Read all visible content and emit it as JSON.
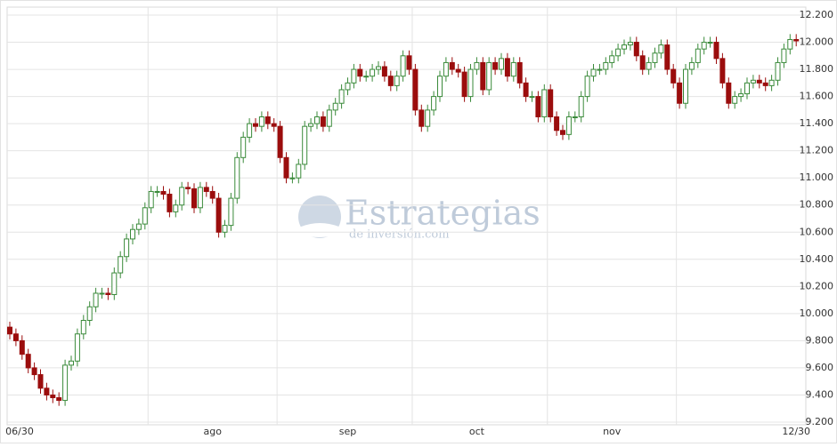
{
  "chart_data": {
    "type": "candlestick",
    "watermark": "Estrategias",
    "watermark_subtitle": "de inversión.com",
    "up_color": "#3a8a3a",
    "down_color": "#9b0d0d",
    "grid": true,
    "ylim": [
      9.2,
      12.2
    ],
    "yticks": [
      {
        "value": 9.2,
        "label": "9.200"
      },
      {
        "value": 9.4,
        "label": "9.400"
      },
      {
        "value": 9.6,
        "label": "9.600"
      },
      {
        "value": 9.8,
        "label": "9.800"
      },
      {
        "value": 10.0,
        "label": "10.000"
      },
      {
        "value": 10.2,
        "label": "10.200"
      },
      {
        "value": 10.4,
        "label": "10.400"
      },
      {
        "value": 10.6,
        "label": "10.600"
      },
      {
        "value": 10.8,
        "label": "10.800"
      },
      {
        "value": 11.0,
        "label": "11.000"
      },
      {
        "value": 11.2,
        "label": "11.200"
      },
      {
        "value": 11.4,
        "label": "11.400"
      },
      {
        "value": 11.6,
        "label": "11.600"
      },
      {
        "value": 11.8,
        "label": "11.800"
      },
      {
        "value": 12.0,
        "label": "12.000"
      },
      {
        "value": 12.2,
        "label": "12.200"
      }
    ],
    "categories": [
      "06/30",
      null,
      null,
      null,
      null,
      null,
      null,
      null,
      null,
      null,
      null,
      null,
      null,
      null,
      null,
      null,
      null,
      null,
      null,
      null,
      null,
      null,
      null,
      null,
      null,
      null,
      null,
      null,
      null,
      null,
      null,
      null,
      null,
      "ago",
      null,
      null,
      null,
      null,
      null,
      null,
      null,
      null,
      null,
      null,
      null,
      null,
      null,
      null,
      null,
      null,
      null,
      null,
      null,
      null,
      null,
      "sep",
      null,
      null,
      null,
      null,
      null,
      null,
      null,
      null,
      null,
      null,
      null,
      null,
      null,
      null,
      null,
      null,
      null,
      null,
      null,
      null,
      "oct",
      null,
      null,
      null,
      null,
      null,
      null,
      null,
      null,
      null,
      null,
      null,
      null,
      null,
      null,
      null,
      null,
      null,
      null,
      null,
      null,
      null,
      "nov",
      null,
      null,
      null,
      null,
      null,
      null,
      null,
      null,
      null,
      null,
      null,
      null,
      null,
      null,
      null,
      null,
      null,
      null,
      null,
      null,
      null,
      null,
      null,
      null,
      null,
      null,
      null,
      null,
      null,
      "12/30"
    ],
    "open": [
      9.9,
      9.85,
      9.8,
      9.7,
      9.6,
      9.55,
      9.45,
      9.4,
      9.38,
      9.36,
      9.62,
      9.65,
      9.85,
      9.95,
      10.05,
      10.15,
      10.15,
      10.14,
      10.3,
      10.42,
      10.55,
      10.62,
      10.66,
      10.78,
      10.9,
      10.9,
      10.88,
      10.75,
      10.8,
      10.93,
      10.92,
      10.78,
      10.93,
      10.9,
      10.85,
      10.6,
      10.65,
      10.85,
      11.15,
      11.3,
      11.4,
      11.38,
      11.45,
      11.4,
      11.38,
      11.15,
      11.0,
      11.0,
      11.1,
      11.38,
      11.4,
      11.45,
      11.38,
      11.5,
      11.55,
      11.65,
      11.7,
      11.8,
      11.75,
      11.75,
      11.8,
      11.82,
      11.75,
      11.68,
      11.75,
      11.9,
      11.8,
      11.5,
      11.38,
      11.5,
      11.6,
      11.75,
      11.85,
      11.8,
      11.78,
      11.6,
      11.8,
      11.85,
      11.65,
      11.85,
      11.8,
      11.88,
      11.75,
      11.85,
      11.7,
      11.6,
      11.6,
      11.45,
      11.65,
      11.45,
      11.35,
      11.32,
      11.45,
      11.45,
      11.6,
      11.75,
      11.8,
      11.8,
      11.85,
      11.9,
      11.95,
      11.98,
      12.0,
      11.9,
      11.8,
      11.85,
      11.92,
      11.98,
      11.8,
      11.7,
      11.55,
      11.8,
      11.85,
      11.95,
      12.0,
      12.0,
      11.88,
      11.7,
      11.55,
      11.6,
      11.62,
      11.7,
      11.72,
      11.7,
      11.68,
      11.72,
      11.85,
      11.95,
      12.02
    ],
    "high": [
      9.94,
      9.89,
      9.84,
      9.74,
      9.64,
      9.59,
      9.49,
      9.44,
      9.42,
      9.66,
      9.69,
      9.89,
      9.99,
      10.09,
      10.19,
      10.19,
      10.19,
      10.34,
      10.46,
      10.59,
      10.66,
      10.7,
      10.82,
      10.94,
      10.94,
      10.94,
      10.92,
      10.84,
      10.97,
      10.97,
      10.96,
      10.97,
      10.97,
      10.94,
      10.89,
      10.69,
      10.89,
      11.19,
      11.34,
      11.44,
      11.44,
      11.49,
      11.49,
      11.44,
      11.42,
      11.19,
      11.04,
      11.14,
      11.42,
      11.44,
      11.49,
      11.49,
      11.54,
      11.59,
      11.69,
      11.74,
      11.84,
      11.84,
      11.79,
      11.84,
      11.86,
      11.86,
      11.79,
      11.79,
      11.94,
      11.94,
      11.84,
      11.54,
      11.54,
      11.64,
      11.79,
      11.89,
      11.89,
      11.84,
      11.82,
      11.84,
      11.89,
      11.89,
      11.89,
      11.89,
      11.92,
      11.92,
      11.89,
      11.89,
      11.74,
      11.64,
      11.64,
      11.69,
      11.69,
      11.49,
      11.39,
      11.49,
      11.49,
      11.64,
      11.79,
      11.84,
      11.84,
      11.89,
      11.94,
      11.99,
      12.02,
      12.04,
      12.04,
      11.94,
      11.89,
      11.96,
      12.02,
      12.02,
      11.84,
      11.74,
      11.84,
      11.89,
      11.99,
      12.04,
      12.04,
      12.04,
      11.92,
      11.74,
      11.64,
      11.66,
      11.74,
      11.76,
      11.76,
      11.74,
      11.76,
      11.89,
      11.99,
      12.06,
      12.06
    ],
    "low": [
      9.81,
      9.76,
      9.66,
      9.56,
      9.51,
      9.41,
      9.36,
      9.34,
      9.32,
      9.32,
      9.58,
      9.61,
      9.81,
      9.91,
      10.01,
      10.11,
      10.1,
      10.1,
      10.26,
      10.38,
      10.51,
      10.58,
      10.62,
      10.74,
      10.86,
      10.84,
      10.71,
      10.71,
      10.76,
      10.88,
      10.74,
      10.74,
      10.86,
      10.81,
      10.56,
      10.56,
      10.61,
      10.81,
      11.11,
      11.26,
      11.34,
      11.34,
      11.36,
      11.34,
      11.11,
      10.96,
      10.96,
      10.96,
      11.06,
      11.34,
      11.36,
      11.34,
      11.34,
      11.46,
      11.51,
      11.61,
      11.66,
      11.71,
      11.71,
      11.71,
      11.76,
      11.71,
      11.64,
      11.64,
      11.71,
      11.76,
      11.46,
      11.34,
      11.34,
      11.46,
      11.56,
      11.71,
      11.76,
      11.74,
      11.56,
      11.56,
      11.76,
      11.61,
      11.61,
      11.76,
      11.76,
      11.71,
      11.71,
      11.66,
      11.56,
      11.56,
      11.41,
      11.41,
      11.41,
      11.31,
      11.28,
      11.28,
      11.41,
      11.41,
      11.56,
      11.71,
      11.76,
      11.76,
      11.81,
      11.86,
      11.91,
      11.94,
      11.86,
      11.76,
      11.76,
      11.81,
      11.88,
      11.76,
      11.66,
      11.51,
      11.51,
      11.76,
      11.81,
      11.91,
      11.96,
      11.84,
      11.66,
      11.51,
      11.51,
      11.56,
      11.58,
      11.66,
      11.66,
      11.64,
      11.64,
      11.68,
      11.81,
      11.91,
      11.97
    ],
    "close": [
      9.85,
      9.8,
      9.7,
      9.6,
      9.55,
      9.45,
      9.4,
      9.38,
      9.36,
      9.62,
      9.65,
      9.85,
      9.95,
      10.05,
      10.15,
      10.15,
      10.14,
      10.3,
      10.42,
      10.55,
      10.62,
      10.66,
      10.78,
      10.9,
      10.9,
      10.88,
      10.75,
      10.8,
      10.93,
      10.92,
      10.78,
      10.93,
      10.9,
      10.85,
      10.6,
      10.65,
      10.85,
      11.15,
      11.3,
      11.4,
      11.38,
      11.45,
      11.4,
      11.38,
      11.15,
      11.0,
      11.0,
      11.1,
      11.38,
      11.4,
      11.45,
      11.38,
      11.5,
      11.55,
      11.65,
      11.7,
      11.8,
      11.75,
      11.75,
      11.8,
      11.82,
      11.75,
      11.68,
      11.75,
      11.9,
      11.8,
      11.5,
      11.38,
      11.5,
      11.6,
      11.75,
      11.85,
      11.8,
      11.78,
      11.6,
      11.8,
      11.85,
      11.65,
      11.85,
      11.8,
      11.88,
      11.75,
      11.85,
      11.7,
      11.6,
      11.6,
      11.45,
      11.65,
      11.45,
      11.35,
      11.32,
      11.45,
      11.45,
      11.6,
      11.75,
      11.8,
      11.8,
      11.85,
      11.9,
      11.95,
      11.98,
      12.0,
      11.9,
      11.8,
      11.85,
      11.92,
      11.98,
      11.8,
      11.7,
      11.55,
      11.8,
      11.85,
      11.95,
      12.0,
      12.0,
      11.88,
      11.7,
      11.55,
      11.6,
      11.62,
      11.7,
      11.72,
      11.7,
      11.68,
      11.72,
      11.85,
      11.95,
      12.02,
      12.01
    ]
  }
}
